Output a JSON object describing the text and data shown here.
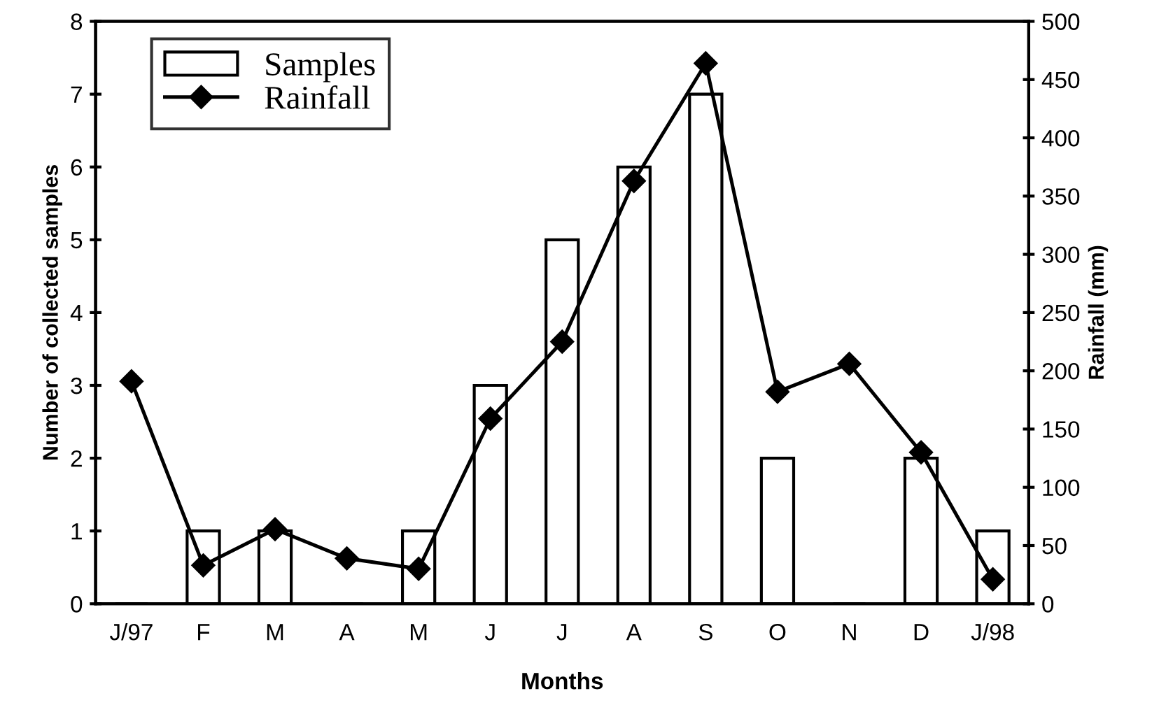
{
  "chart_data": {
    "type": "bar",
    "xlabel": "Months",
    "ylabel": "Number of collected samples",
    "y2label": "Rainfall (mm)",
    "categories": [
      "J/97",
      "F",
      "M",
      "A",
      "M",
      "J",
      "J",
      "A",
      "S",
      "O",
      "N",
      "D",
      "J/98"
    ],
    "series": [
      {
        "name": "Samples",
        "color": "#ffffff",
        "values": [
          0,
          1,
          1,
          0,
          1,
          3,
          5,
          6,
          7,
          2,
          0,
          2,
          1
        ]
      },
      {
        "name": "Rainfall",
        "type": "line",
        "axis": "y2",
        "color": "#000000",
        "marker": "diamond",
        "values": [
          191,
          33,
          64,
          39,
          30,
          159,
          225,
          363,
          464,
          182,
          206,
          130,
          21
        ]
      }
    ],
    "ylim": [
      0,
      8
    ],
    "yticks": [
      0,
      1,
      2,
      3,
      4,
      5,
      6,
      7,
      8
    ],
    "y2lim": [
      0,
      500
    ],
    "y2ticks": [
      0,
      50,
      100,
      150,
      200,
      250,
      300,
      350,
      400,
      450,
      500
    ],
    "grid": false,
    "legend": "top left"
  }
}
